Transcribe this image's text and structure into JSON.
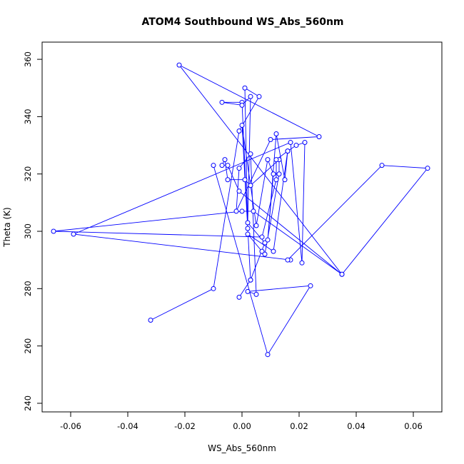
{
  "chart_data": {
    "type": "scatter",
    "connected": true,
    "title": "ATOM4 Southbound WS_Abs_560nm",
    "xlabel": "WS_Abs_560nm",
    "ylabel": "Theta (K)",
    "xlim": [
      -0.07,
      0.07
    ],
    "ylim": [
      237,
      366
    ],
    "xticks": [
      -0.06,
      -0.04,
      -0.02,
      0.0,
      0.02,
      0.04,
      0.06
    ],
    "xtick_labels": [
      "-0.06",
      "-0.04",
      "-0.02",
      "0.00",
      "0.02",
      "0.04",
      "0.06"
    ],
    "yticks": [
      240,
      260,
      280,
      300,
      320,
      340,
      360
    ],
    "ytick_labels": [
      "240",
      "260",
      "280",
      "300",
      "320",
      "340",
      "360"
    ],
    "grid": false,
    "color": "#0000ff",
    "series": [
      {
        "x": [
          -0.032,
          -0.01,
          -0.001,
          0.006,
          0.001,
          0.002,
          0.0,
          -0.007,
          0.0,
          0.003,
          0.002,
          0.008,
          0.003,
          -0.001,
          0.003,
          0.0,
          0.005,
          0.009,
          0.011,
          0.009,
          0.012,
          0.015,
          0.016,
          0.011,
          0.002,
          0.007,
          0.008,
          0.013,
          0.013,
          0.003,
          0.001,
          -0.005,
          -0.006,
          -0.007,
          -0.005,
          -0.001,
          0.035,
          0.004,
          0.0,
          -0.066,
          0.007,
          0.012,
          0.012,
          0.016,
          0.019,
          0.022,
          0.021,
          0.017,
          -0.059,
          0.017,
          0.016,
          0.049,
          0.065,
          0.035,
          -0.022,
          0.027,
          0.01,
          -0.002,
          -0.001,
          0.003,
          0.005,
          0.002,
          0.024,
          0.009,
          -0.01
        ],
        "y": [
          269,
          280,
          335,
          347,
          350,
          301,
          345,
          345,
          344,
          347,
          303,
          296,
          283,
          277,
          283,
          337,
          302,
          325,
          320,
          297,
          334,
          318,
          328,
          293,
          299,
          293,
          292,
          320,
          325,
          316,
          318,
          318,
          325,
          323,
          323,
          314,
          285,
          307,
          307,
          300,
          298,
          318,
          325,
          328,
          330,
          331,
          289,
          331,
          299,
          290,
          290,
          323,
          322,
          285,
          358,
          333,
          332,
          307,
          322,
          327,
          278,
          279,
          281,
          257,
          323
        ]
      }
    ]
  }
}
